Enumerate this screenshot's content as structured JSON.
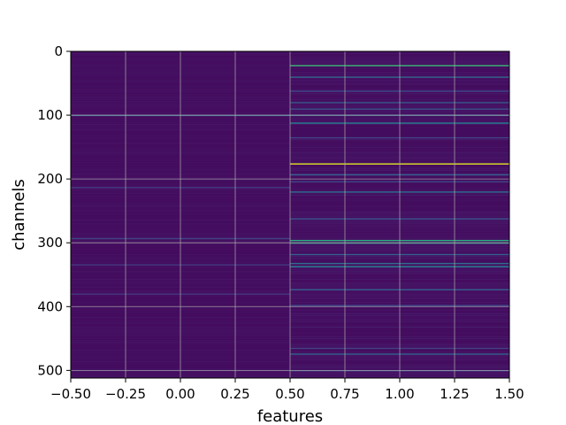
{
  "chart_data": {
    "type": "heatmap",
    "title": "",
    "xlabel": "features",
    "ylabel": "channels",
    "xlim": [
      -0.5,
      1.5
    ],
    "ylim": [
      512,
      0
    ],
    "x_ticks": [
      -0.5,
      -0.25,
      0.0,
      0.25,
      0.5,
      0.75,
      1.0,
      1.25,
      1.5
    ],
    "x_tick_labels": [
      "−0.50",
      "−0.25",
      "0.00",
      "0.25",
      "0.50",
      "0.75",
      "1.00",
      "1.25",
      "1.50"
    ],
    "y_ticks": [
      0,
      100,
      200,
      300,
      400,
      500
    ],
    "y_tick_labels": [
      "0",
      "100",
      "200",
      "300",
      "400",
      "500"
    ],
    "grid": true,
    "colormap": "viridis",
    "columns": [
      0,
      1
    ],
    "rows": 512,
    "base_value": 0.03,
    "column_values": [
      {
        "feature": 0,
        "highlights": [
          {
            "channel": 100,
            "value": 0.32
          },
          {
            "channel": 213,
            "value": 0.18
          },
          {
            "channel": 293,
            "value": 0.2
          },
          {
            "channel": 334,
            "value": 0.16
          },
          {
            "channel": 380,
            "value": 0.16
          }
        ]
      },
      {
        "feature": 1,
        "highlights": [
          {
            "channel": 22,
            "value": 0.68
          },
          {
            "channel": 40,
            "value": 0.32
          },
          {
            "channel": 62,
            "value": 0.22
          },
          {
            "channel": 80,
            "value": 0.28
          },
          {
            "channel": 90,
            "value": 0.25
          },
          {
            "channel": 100,
            "value": 0.32
          },
          {
            "channel": 112,
            "value": 0.42
          },
          {
            "channel": 135,
            "value": 0.2
          },
          {
            "channel": 176,
            "value": 0.95
          },
          {
            "channel": 193,
            "value": 0.3
          },
          {
            "channel": 204,
            "value": 0.22
          },
          {
            "channel": 220,
            "value": 0.35
          },
          {
            "channel": 262,
            "value": 0.25
          },
          {
            "channel": 296,
            "value": 0.62
          },
          {
            "channel": 300,
            "value": 0.55
          },
          {
            "channel": 318,
            "value": 0.3
          },
          {
            "channel": 332,
            "value": 0.35
          },
          {
            "channel": 337,
            "value": 0.45
          },
          {
            "channel": 373,
            "value": 0.3
          },
          {
            "channel": 398,
            "value": 0.22
          },
          {
            "channel": 465,
            "value": 0.2
          },
          {
            "channel": 474,
            "value": 0.32
          },
          {
            "channel": 500,
            "value": 0.22
          }
        ]
      }
    ]
  }
}
